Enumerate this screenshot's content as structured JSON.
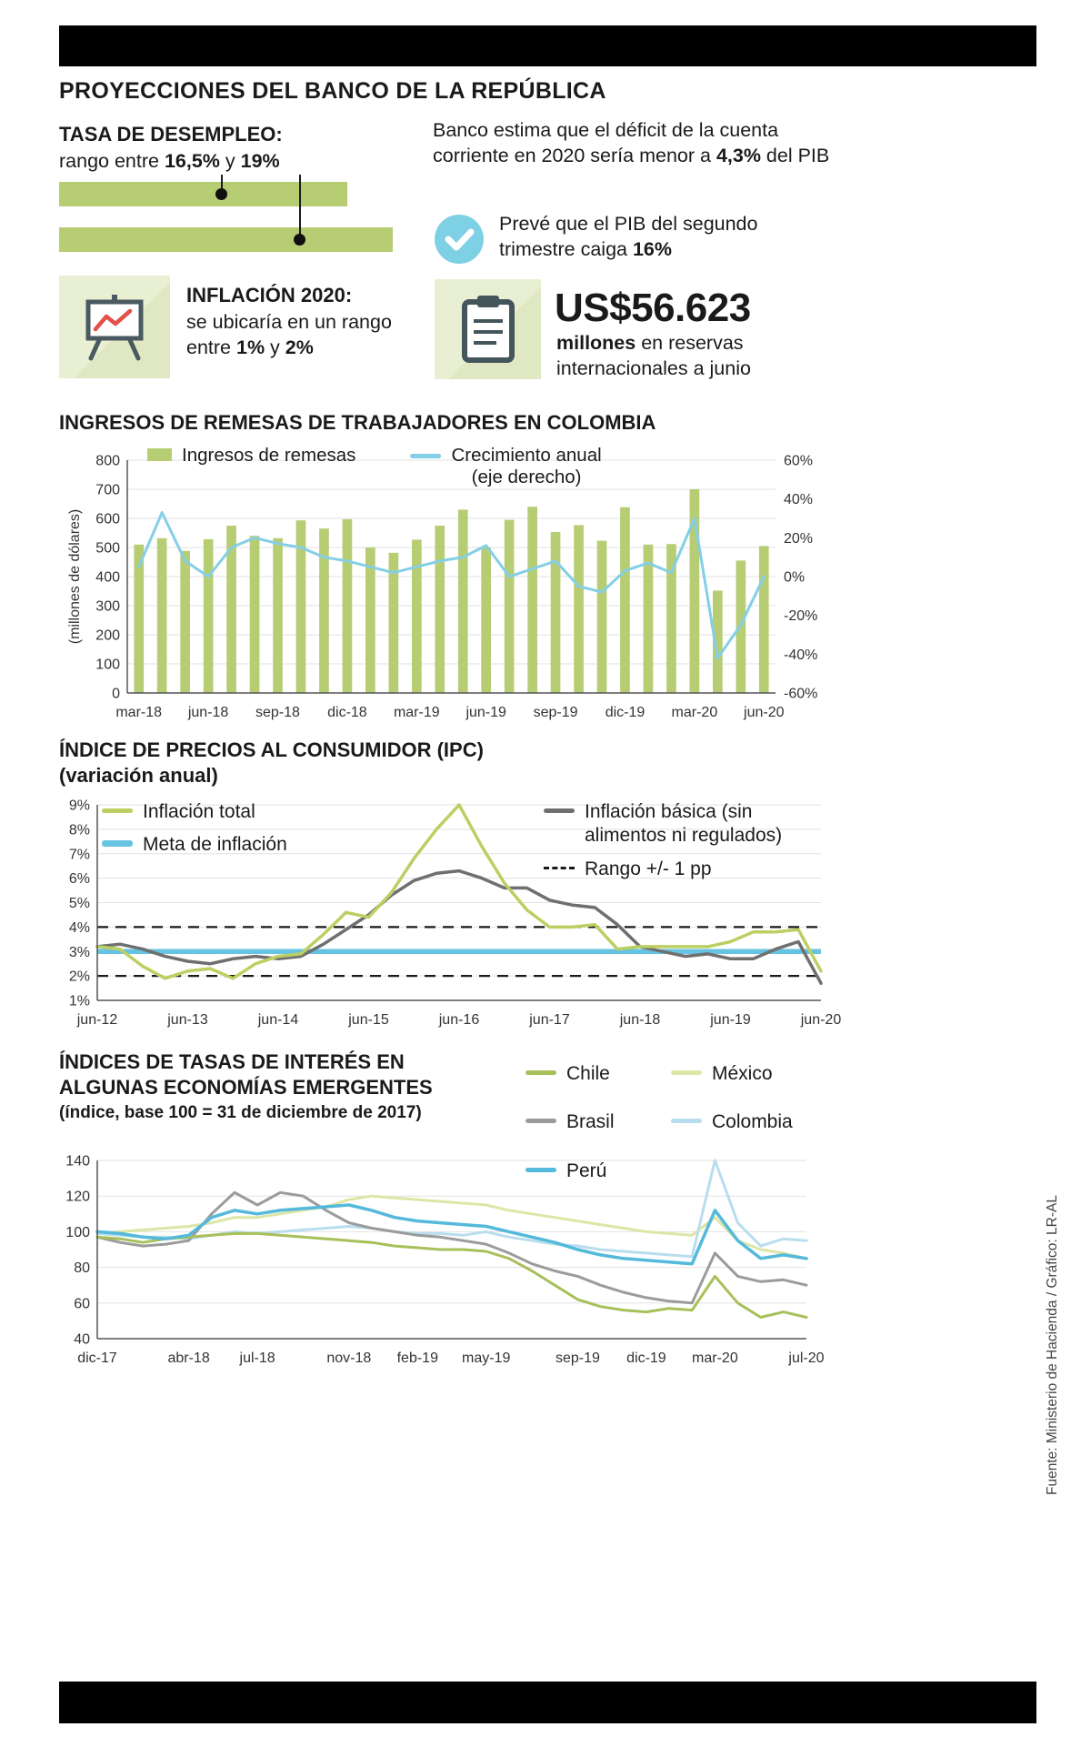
{
  "page": {
    "title": "PROYECCIONES DEL BANCO DE LA REPÚBLICA",
    "source_credit": "Fuente: Ministerio de Hacienda / Gráfico: LR-AL"
  },
  "accents": {
    "green_bar": "#b7cd74",
    "card_background": "#e9efd2",
    "check_blue": "#7ed0e4",
    "icon_slate": "#44565c",
    "icon_red": "#e2514a"
  },
  "unemployment": {
    "heading": "TASA DE DESEMPLEO:",
    "range_prefix": "rango entre ",
    "range_low": "16,5%",
    "range_mid": " y ",
    "range_high": "19%"
  },
  "deficit": {
    "text_pre": "Banco estima que el déficit de la cuenta corriente en 2020 sería menor a ",
    "value": "4,3%",
    "text_post": " del PIB"
  },
  "gdp": {
    "text_pre": "Prevé que el PIB del segundo trimestre caiga ",
    "value": "16%"
  },
  "inflation_card": {
    "heading": "INFLACIÓN 2020:",
    "text_pre": "se ubicaría en un rango entre ",
    "low": "1%",
    "mid": " y ",
    "high": "2%"
  },
  "reserves_card": {
    "amount": "US$56.623",
    "bold": "millones",
    "text": " en reservas internacionales a junio"
  },
  "chart_data": [
    {
      "type": "bar",
      "title": "INGRESOS DE REMESAS DE TRABAJADORES EN COLOMBIA",
      "ylabel": "(millones de dólares)",
      "legend_line": [
        "Crecimiento anual",
        "(eje derecho)"
      ],
      "n_points": 28,
      "bar_slots": true,
      "ylim": [
        0,
        800
      ],
      "y2lim": [
        -60,
        60
      ],
      "yticks": [
        [
          0,
          "0"
        ],
        [
          100,
          "100"
        ],
        [
          200,
          "200"
        ],
        [
          300,
          "300"
        ],
        [
          400,
          "400"
        ],
        [
          500,
          "500"
        ],
        [
          600,
          "600"
        ],
        [
          700,
          "700"
        ],
        [
          800,
          "800"
        ]
      ],
      "y2ticks": [
        [
          -60,
          "-60%"
        ],
        [
          -40,
          "-40%"
        ],
        [
          -20,
          "-20%"
        ],
        [
          0,
          "0%"
        ],
        [
          20,
          "20%"
        ],
        [
          40,
          "40%"
        ],
        [
          60,
          "60%"
        ]
      ],
      "xticks": [
        [
          0,
          "mar-18"
        ],
        [
          3,
          "jun-18"
        ],
        [
          6,
          "sep-18"
        ],
        [
          9,
          "dic-18"
        ],
        [
          12,
          "mar-19"
        ],
        [
          15,
          "jun-19"
        ],
        [
          18,
          "sep-19"
        ],
        [
          21,
          "dic-19"
        ],
        [
          24,
          "mar-20"
        ],
        [
          27,
          "jun-20"
        ]
      ],
      "layout": {
        "l": 75,
        "r": 62,
        "t": 16,
        "b": 40
      },
      "series": [
        {
          "name": "Ingresos de remesas",
          "type": "bar",
          "axis": "left",
          "color": "#b7cd74",
          "bar_frac": 0.42,
          "values": [
            510,
            532,
            488,
            528,
            575,
            540,
            532,
            593,
            565,
            597,
            500,
            482,
            527,
            575,
            630,
            500,
            595,
            640,
            553,
            577,
            523,
            638,
            510,
            512,
            700,
            352,
            455,
            505
          ]
        },
        {
          "name": "Crecimiento anual (eje derecho)",
          "type": "line",
          "axis": "right",
          "color": "#84cfe6",
          "width": 3,
          "values": [
            5,
            33,
            8,
            0,
            15,
            20,
            17,
            15,
            10,
            8,
            5,
            2,
            5,
            8,
            10,
            16,
            0,
            4,
            8,
            -5,
            -8,
            3,
            7,
            2,
            30,
            -42,
            -25,
            0
          ]
        }
      ]
    },
    {
      "type": "line",
      "title": "ÍNDICE DE PRECIOS AL CONSUMIDOR (IPC)",
      "subtitle": "(variación anual)",
      "legend_basica": [
        "Inflación básica (sin",
        "alimentos ni regulados)"
      ],
      "n_points": 33,
      "ylim": [
        1,
        9
      ],
      "yticks": [
        [
          1,
          "1%"
        ],
        [
          2,
          "2%"
        ],
        [
          3,
          "3%"
        ],
        [
          4,
          "4%"
        ],
        [
          5,
          "5%"
        ],
        [
          6,
          "6%"
        ],
        [
          7,
          "7%"
        ],
        [
          8,
          "8%"
        ],
        [
          9,
          "9%"
        ]
      ],
      "xticks": [
        [
          0,
          "jun-12"
        ],
        [
          4,
          "jun-13"
        ],
        [
          8,
          "jun-14"
        ],
        [
          12,
          "jun-15"
        ],
        [
          16,
          "jun-16"
        ],
        [
          20,
          "jun-17"
        ],
        [
          24,
          "jun-18"
        ],
        [
          28,
          "jun-19"
        ],
        [
          32,
          "jun-20"
        ]
      ],
      "layout": {
        "l": 42,
        "r": 12,
        "t": 12,
        "b": 45
      },
      "series": [
        {
          "name": "Meta de inflación",
          "type": "hline",
          "value": 3,
          "color": "#66c3e2",
          "width": 5.5
        },
        {
          "name": "Rango +/- 1 pp",
          "type": "hline",
          "value": 4,
          "color": "#1a1a1a",
          "width": 2.2,
          "dash": true
        },
        {
          "name": "Rango +/- 1 pp",
          "type": "hline",
          "value": 2,
          "color": "#1a1a1a",
          "width": 2.2,
          "dash": true
        },
        {
          "name": "Inflación básica (sin alimentos ni regulados)",
          "type": "line",
          "color": "#6f6f6f",
          "width": 3.5,
          "values": [
            3.2,
            3.3,
            3.1,
            2.8,
            2.6,
            2.5,
            2.7,
            2.8,
            2.7,
            2.8,
            3.3,
            3.9,
            4.5,
            5.3,
            5.9,
            6.2,
            6.3,
            6.0,
            5.6,
            5.6,
            5.1,
            4.9,
            4.8,
            4.1,
            3.2,
            3.0,
            2.8,
            2.9,
            2.7,
            2.7,
            3.1,
            3.4,
            1.7
          ]
        },
        {
          "name": "Inflación total",
          "type": "line",
          "color": "#bccf63",
          "width": 3.5,
          "values": [
            3.2,
            3.1,
            2.4,
            1.9,
            2.2,
            2.3,
            1.9,
            2.5,
            2.8,
            2.9,
            3.7,
            4.6,
            4.4,
            5.4,
            6.8,
            8.0,
            9.0,
            7.3,
            5.8,
            4.7,
            4.0,
            4.0,
            4.1,
            3.1,
            3.2,
            3.2,
            3.2,
            3.2,
            3.4,
            3.8,
            3.8,
            3.9,
            2.2
          ]
        }
      ]
    },
    {
      "type": "line",
      "title_lines": [
        "ÍNDICES DE TASAS DE INTERÉS EN",
        "ALGUNAS ECONOMÍAS EMERGENTES"
      ],
      "subtitle": "(índice, base 100 = 31 de diciembre de 2017)",
      "n_points": 32,
      "ylim": [
        40,
        140
      ],
      "yticks": [
        [
          40,
          "40"
        ],
        [
          60,
          "60"
        ],
        [
          80,
          "80"
        ],
        [
          100,
          "100"
        ],
        [
          120,
          "120"
        ],
        [
          140,
          "140"
        ]
      ],
      "xticks": [
        [
          0,
          "dic-17"
        ],
        [
          4,
          "abr-18"
        ],
        [
          7,
          "jul-18"
        ],
        [
          11,
          "nov-18"
        ],
        [
          14,
          "feb-19"
        ],
        [
          17,
          "may-19"
        ],
        [
          21,
          "sep-19"
        ],
        [
          24,
          "dic-19"
        ],
        [
          27,
          "mar-20"
        ],
        [
          31,
          "jul-20"
        ]
      ],
      "layout": {
        "l": 42,
        "r": 28,
        "t": 14,
        "b": 42
      },
      "series": [
        {
          "name": "México",
          "type": "line",
          "color": "#dde6a6",
          "width": 3,
          "values": [
            99,
            100,
            101,
            102,
            103,
            105,
            108,
            108,
            110,
            112,
            114,
            118,
            120,
            119,
            118,
            117,
            116,
            115,
            112,
            110,
            108,
            106,
            104,
            102,
            100,
            99,
            98,
            108,
            95,
            90,
            88,
            85
          ]
        },
        {
          "name": "Colombia",
          "type": "line",
          "color": "#b9ddee",
          "width": 3,
          "values": [
            99,
            98,
            97,
            97,
            96,
            98,
            100,
            99,
            100,
            101,
            102,
            103,
            102,
            100,
            99,
            99,
            98,
            100,
            97,
            95,
            93,
            92,
            90,
            89,
            88,
            87,
            86,
            140,
            105,
            92,
            96,
            95
          ]
        },
        {
          "name": "Brasil",
          "type": "line",
          "color": "#9b9b9b",
          "width": 3,
          "values": [
            97,
            94,
            92,
            93,
            95,
            110,
            122,
            115,
            122,
            120,
            112,
            105,
            102,
            100,
            98,
            97,
            95,
            93,
            88,
            82,
            78,
            75,
            70,
            66,
            63,
            61,
            60,
            88,
            75,
            72,
            73,
            70
          ]
        },
        {
          "name": "Chile",
          "type": "line",
          "color": "#a8c05a",
          "width": 3,
          "values": [
            97,
            96,
            94,
            96,
            97,
            98,
            99,
            99,
            98,
            97,
            96,
            95,
            94,
            92,
            91,
            90,
            90,
            89,
            85,
            78,
            70,
            62,
            58,
            56,
            55,
            57,
            56,
            75,
            60,
            52,
            55,
            52
          ]
        },
        {
          "name": "Perú",
          "type": "line",
          "color": "#54b9da",
          "width": 3.5,
          "values": [
            100,
            99,
            97,
            96,
            98,
            108,
            112,
            110,
            112,
            113,
            114,
            115,
            112,
            108,
            106,
            105,
            104,
            103,
            100,
            97,
            94,
            90,
            87,
            85,
            84,
            83,
            82,
            112,
            95,
            85,
            87,
            85
          ]
        }
      ]
    }
  ]
}
